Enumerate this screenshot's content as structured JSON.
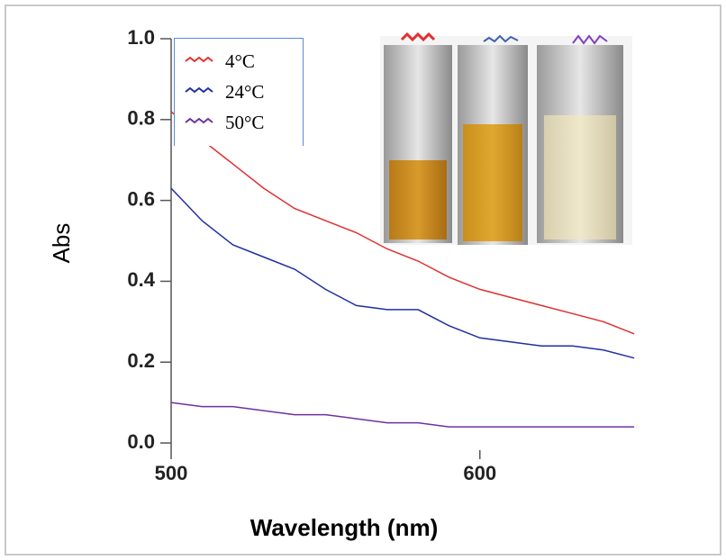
{
  "chart_data": {
    "type": "line",
    "x_label": "Wavelength (nm)",
    "y_label": "Abs",
    "x": [
      500,
      510,
      520,
      530,
      540,
      550,
      560,
      570,
      580,
      590,
      600,
      610,
      620,
      630,
      640,
      650
    ],
    "series": [
      {
        "name": "4°C",
        "color": "#e03030",
        "values": [
          0.82,
          0.75,
          0.69,
          0.63,
          0.58,
          0.55,
          0.52,
          0.48,
          0.45,
          0.41,
          0.38,
          0.36,
          0.34,
          0.32,
          0.3,
          0.27
        ]
      },
      {
        "name": "24°C",
        "color": "#2030a0",
        "values": [
          0.63,
          0.55,
          0.49,
          0.46,
          0.43,
          0.38,
          0.34,
          0.33,
          0.33,
          0.29,
          0.26,
          0.25,
          0.24,
          0.24,
          0.23,
          0.21
        ]
      },
      {
        "name": "50°C",
        "color": "#7030a0",
        "values": [
          0.1,
          0.09,
          0.09,
          0.08,
          0.07,
          0.07,
          0.06,
          0.05,
          0.05,
          0.04,
          0.04,
          0.04,
          0.04,
          0.04,
          0.04,
          0.04
        ]
      }
    ],
    "xlim": [
      500,
      652
    ],
    "ylim": [
      -0.04,
      1.0
    ],
    "xticks": [
      500,
      600
    ],
    "yticks": [
      {
        "value": 0,
        "label": "0.0"
      },
      0.2,
      0.4,
      0.6,
      0.8,
      {
        "value": 1,
        "label": "1.0"
      }
    ]
  }
}
